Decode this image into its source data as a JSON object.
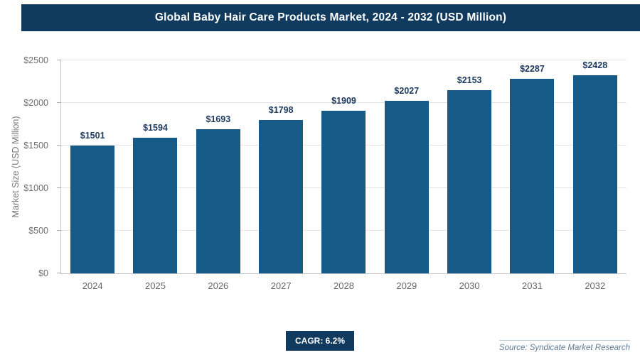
{
  "header": {
    "title": "Global Baby Hair Care Products Market, 2024 - 2032 (USD Million)"
  },
  "chart_data": {
    "type": "bar",
    "title": "Global Baby Hair Care Products Market, 2024 - 2032 (USD Million)",
    "categories": [
      "2024",
      "2025",
      "2026",
      "2027",
      "2028",
      "2029",
      "2030",
      "2031",
      "2032"
    ],
    "values": [
      1501,
      1594,
      1693,
      1798,
      1909,
      2027,
      2153,
      2287,
      2428
    ],
    "value_labels": [
      "$1501",
      "$1594",
      "$1693",
      "$1798",
      "$1909",
      "$2027",
      "$2153",
      "$2287",
      "$2428"
    ],
    "xlabel": "",
    "ylabel": "Market Size (USD Million)",
    "ylim": [
      0,
      2500
    ],
    "yticks": [
      0,
      500,
      1000,
      1500,
      2000,
      2500
    ],
    "ytick_labels": [
      "$0",
      "$500",
      "$1000",
      "$1500",
      "$2000",
      "$2500"
    ],
    "grid": "horizontal",
    "legend": "none",
    "bar_color": "#165a88"
  },
  "footer": {
    "cagr_label": "CAGR: 6.2%",
    "source": "Source: Syndicate Market Research"
  },
  "colors": {
    "header_bg": "#113b5e",
    "bar": "#165a88",
    "value_label": "#1e3a5f"
  }
}
